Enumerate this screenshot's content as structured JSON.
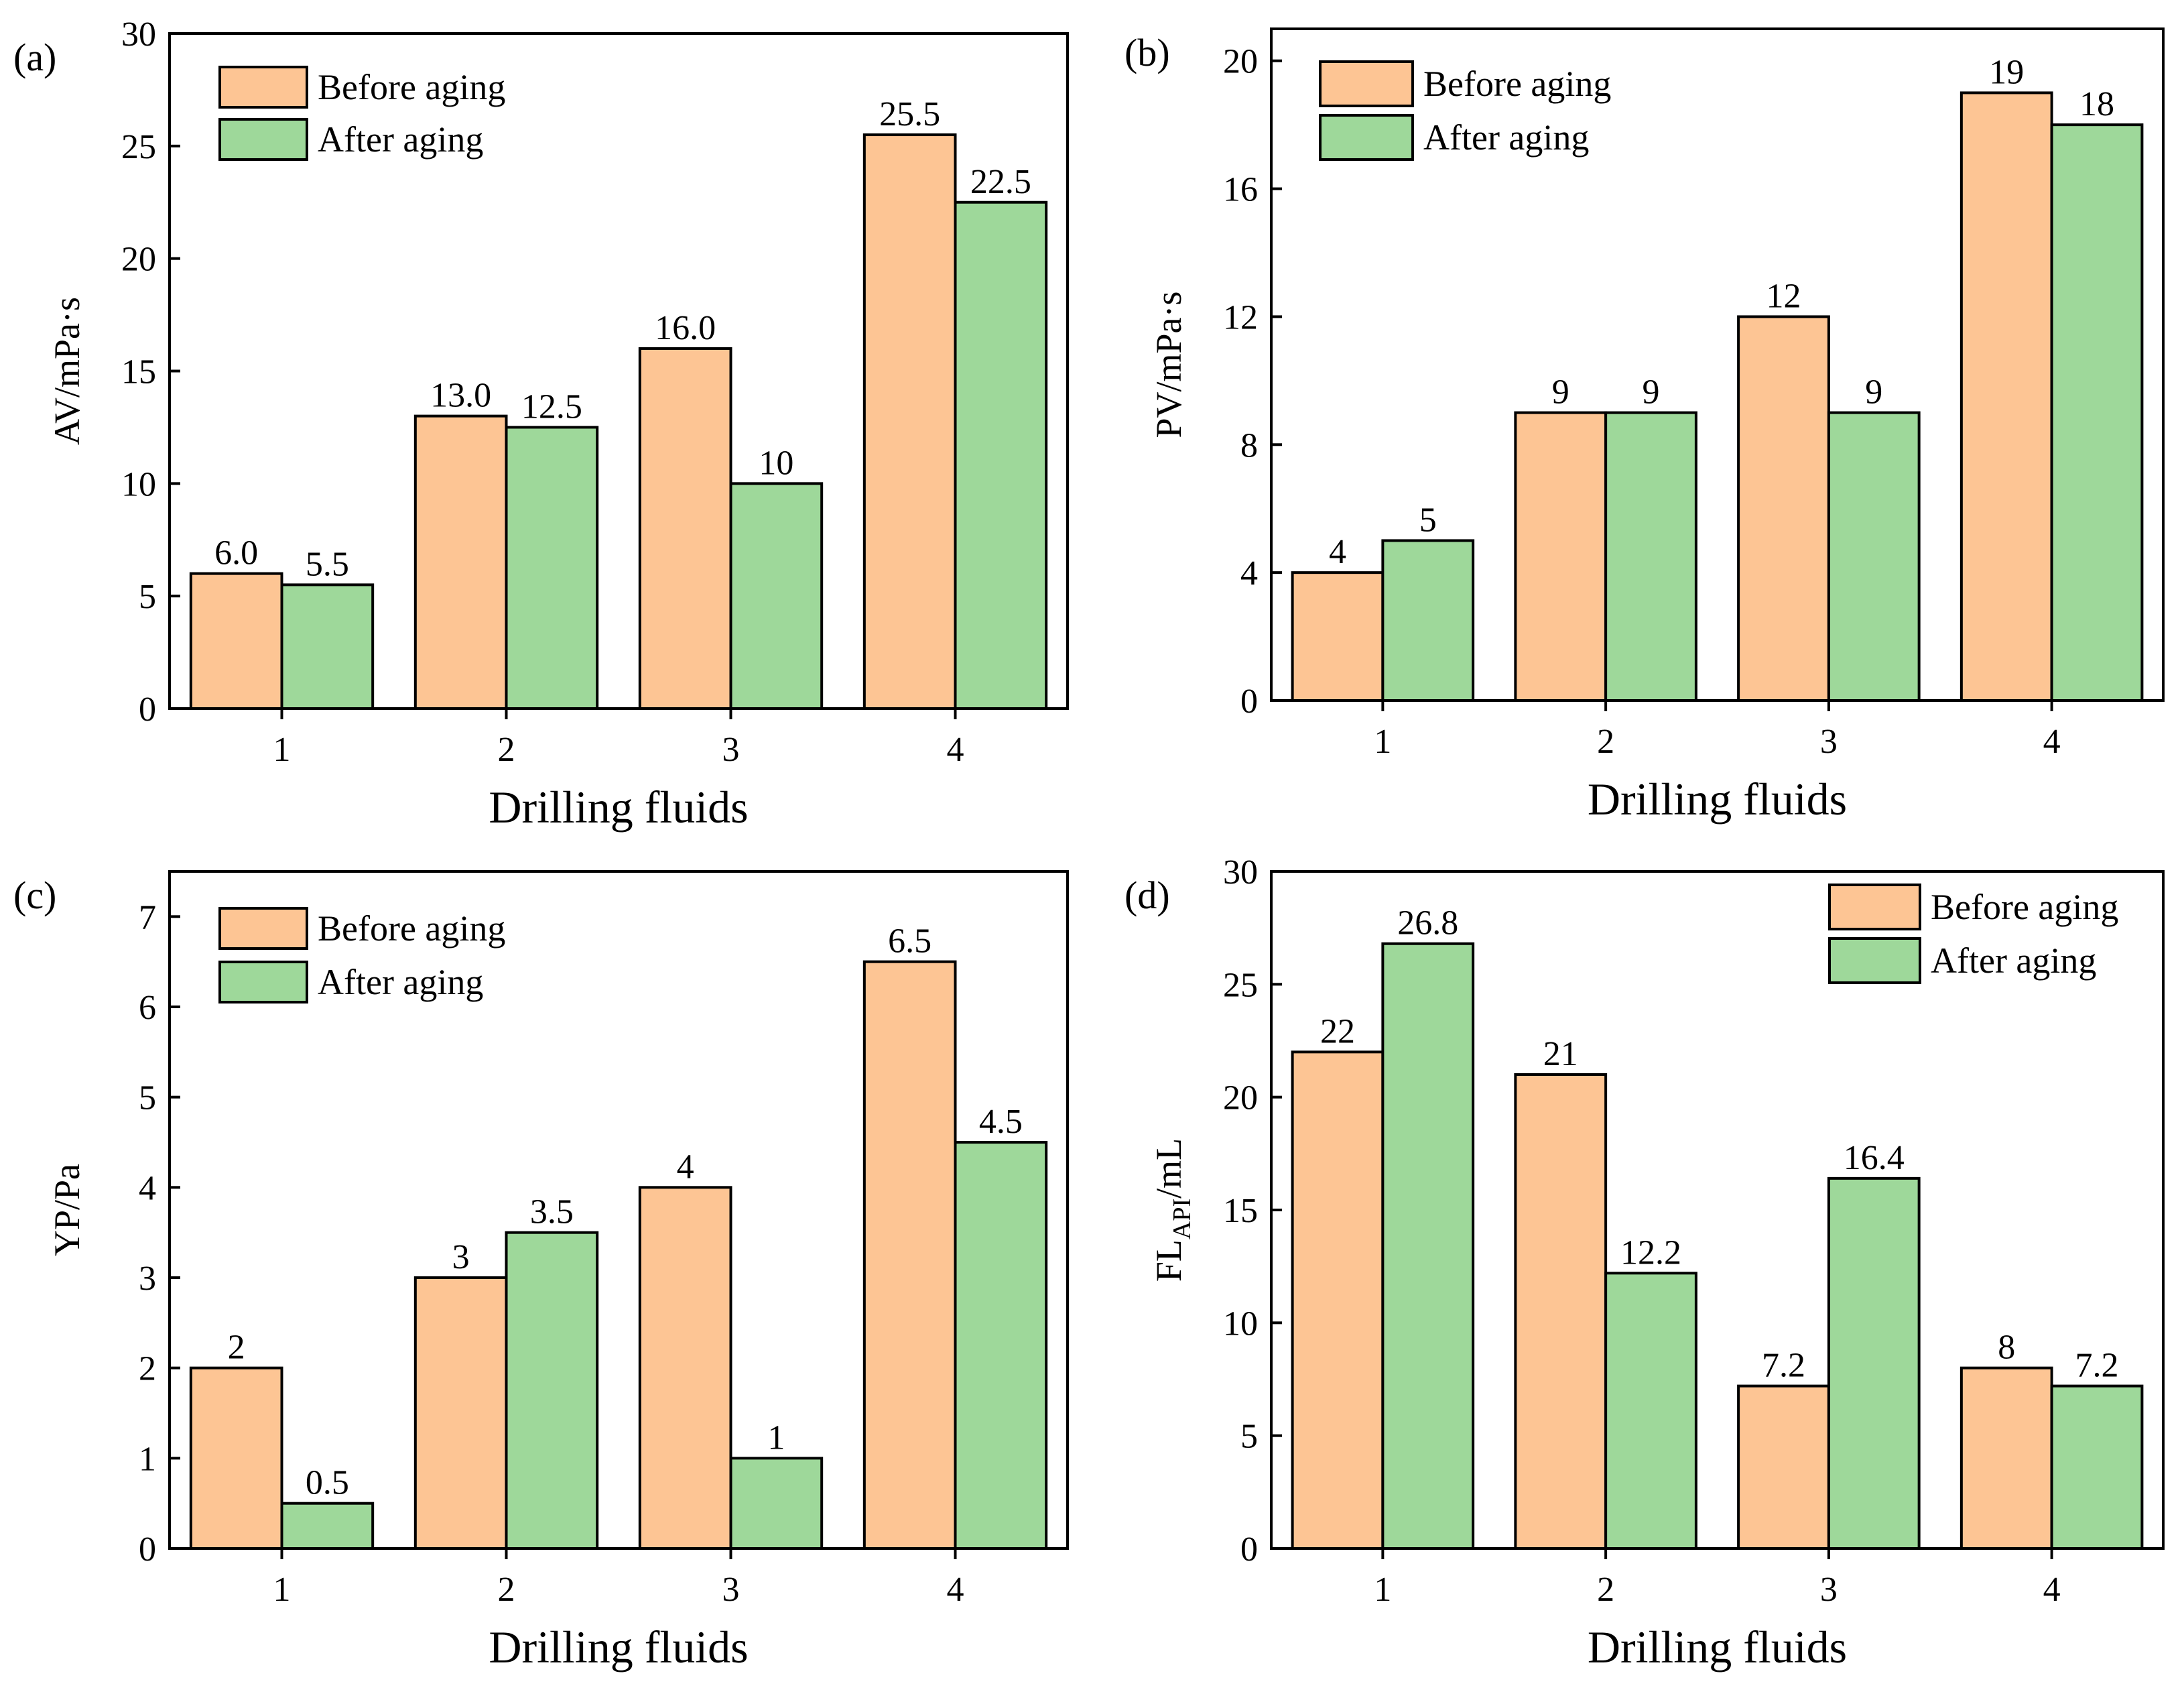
{
  "colors": {
    "before": "#FDC594",
    "after": "#9ED89A",
    "axis": "#000000"
  },
  "series_names": [
    "Before aging",
    "After aging"
  ],
  "chart_data": [
    {
      "type": "bar",
      "panel_label": "(a)",
      "categories": [
        "1",
        "2",
        "3",
        "4"
      ],
      "series": [
        {
          "name": "Before aging",
          "values": [
            6.0,
            13.0,
            16.0,
            25.5
          ],
          "labels": [
            "6.0",
            "13.0",
            "16.0",
            "25.5"
          ]
        },
        {
          "name": "After aging",
          "values": [
            5.5,
            12.5,
            10,
            22.5
          ],
          "labels": [
            "5.5",
            "12.5",
            "10",
            "22.5"
          ]
        }
      ],
      "xlabel": "Drilling fluids",
      "ylabel": "AV/mPa·s",
      "ylabel_main": "AV/mPa·s",
      "ylabel_sub": "",
      "ylabel_suffix": "",
      "ylim": [
        0,
        30
      ],
      "yticks": [
        0,
        5,
        10,
        15,
        20,
        25,
        30
      ],
      "legend_position": "top-left",
      "grid": false
    },
    {
      "type": "bar",
      "panel_label": "(b)",
      "categories": [
        "1",
        "2",
        "3",
        "4"
      ],
      "series": [
        {
          "name": "Before aging",
          "values": [
            4,
            9,
            12,
            19
          ],
          "labels": [
            "4",
            "9",
            "12",
            "19"
          ]
        },
        {
          "name": "After aging",
          "values": [
            5,
            9,
            9,
            18
          ],
          "labels": [
            "5",
            "9",
            "9",
            "18"
          ]
        }
      ],
      "xlabel": "Drilling fluids",
      "ylabel": "PV/mPa·s",
      "ylabel_main": "PV/mPa·s",
      "ylabel_sub": "",
      "ylabel_suffix": "",
      "ylim": [
        0,
        21
      ],
      "yticks": [
        0,
        4,
        8,
        12,
        16,
        20
      ],
      "legend_position": "top-left",
      "grid": false
    },
    {
      "type": "bar",
      "panel_label": "(c)",
      "categories": [
        "1",
        "2",
        "3",
        "4"
      ],
      "series": [
        {
          "name": "Before aging",
          "values": [
            2,
            3,
            4,
            6.5
          ],
          "labels": [
            "2",
            "3",
            "4",
            "6.5"
          ]
        },
        {
          "name": "After aging",
          "values": [
            0.5,
            3.5,
            1,
            4.5
          ],
          "labels": [
            "0.5",
            "3.5",
            "1",
            "4.5"
          ]
        }
      ],
      "xlabel": "Drilling fluids",
      "ylabel": "YP/Pa",
      "ylabel_main": "YP/Pa",
      "ylabel_sub": "",
      "ylabel_suffix": "",
      "ylim": [
        0,
        7.5
      ],
      "yticks": [
        0,
        1,
        2,
        3,
        4,
        5,
        6,
        7
      ],
      "legend_position": "top-left",
      "grid": false
    },
    {
      "type": "bar",
      "panel_label": "(d)",
      "categories": [
        "1",
        "2",
        "3",
        "4"
      ],
      "series": [
        {
          "name": "Before aging",
          "values": [
            22,
            21,
            7.2,
            8
          ],
          "labels": [
            "22",
            "21",
            "7.2",
            "8"
          ]
        },
        {
          "name": "After aging",
          "values": [
            26.8,
            12.2,
            16.4,
            7.2
          ],
          "labels": [
            "26.8",
            "12.2",
            "16.4",
            "7.2"
          ]
        }
      ],
      "xlabel": "Drilling fluids",
      "ylabel": "FLAPI/mL",
      "ylabel_main": "FL",
      "ylabel_sub": "API",
      "ylabel_suffix": "/mL",
      "ylim": [
        0,
        30
      ],
      "yticks": [
        0,
        5,
        10,
        15,
        20,
        25,
        30
      ],
      "legend_position": "top-right",
      "grid": false
    }
  ]
}
